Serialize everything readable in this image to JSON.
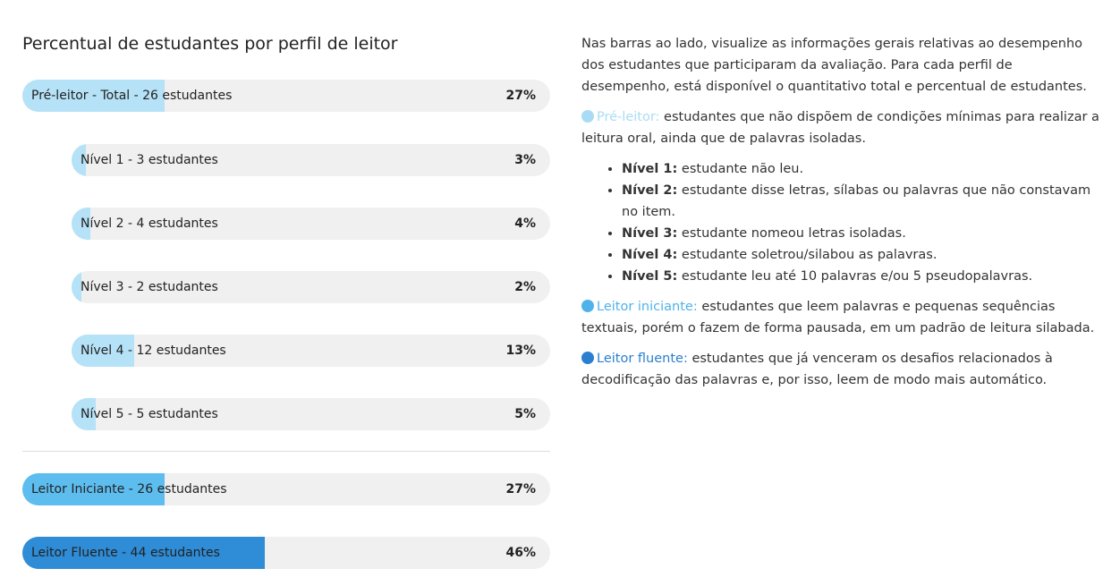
{
  "title": "Percentual de estudantes por perfil de leitor",
  "bars": [
    {
      "label": "Pré-leitor - Total - 26 estudantes",
      "value": 27,
      "value_label": "27%",
      "color": "#b5e2f7"
    },
    {
      "label": "Nível 1 - 3 estudantes",
      "value": 3,
      "value_label": "3%",
      "color": "#b5e2f7"
    },
    {
      "label": "Nível 2 - 4 estudantes",
      "value": 4,
      "value_label": "4%",
      "color": "#b5e2f7"
    },
    {
      "label": "Nível 3 - 2 estudantes",
      "value": 2,
      "value_label": "2%",
      "color": "#b5e2f7"
    },
    {
      "label": "Nível 4 - 12 estudantes",
      "value": 13,
      "value_label": "13%",
      "color": "#b5e2f7"
    },
    {
      "label": "Nível 5 - 5 estudantes",
      "value": 5,
      "value_label": "5%",
      "color": "#b5e2f7"
    },
    {
      "label": "Leitor Iniciante - 26 estudantes",
      "value": 27,
      "value_label": "27%",
      "color": "#5cbdee"
    },
    {
      "label": "Leitor Fluente - 44 estudantes",
      "value": 46,
      "value_label": "46%",
      "color": "#2f8cd6"
    }
  ],
  "description": {
    "intro": "Nas barras ao lado, visualize as informações gerais relativas ao desempenho dos estudantes que participaram da avaliação. Para cada perfil de desempenho, está disponível o quantitativo total e percentual de estudantes.",
    "profiles": [
      {
        "name": "Pré-leitor:",
        "text": "estudantes que não dispõem de condições mínimas para realizar a leitura oral, ainda que de palavras isoladas.",
        "color": "#a9dcf4"
      },
      {
        "name": "Leitor iniciante:",
        "text": "estudantes que leem palavras e pequenas sequências textuais, porém o fazem de forma pausada, em um padrão de leitura silabada.",
        "color": "#4fb3ea"
      },
      {
        "name": "Leitor fluente:",
        "text": "estudantes que já venceram os desafios relacionados à decodificação das palavras e, por isso, leem de modo mais automático.",
        "color": "#2a7fd0"
      }
    ],
    "levels": [
      {
        "name": "Nível 1:",
        "text": "estudante não leu."
      },
      {
        "name": "Nível 2:",
        "text": "estudante disse letras, sílabas ou palavras que não constavam no item."
      },
      {
        "name": "Nível 3:",
        "text": "estudante nomeou letras isoladas."
      },
      {
        "name": "Nível 4:",
        "text": "estudante soletrou/silabou as palavras."
      },
      {
        "name": "Nível 5:",
        "text": "estudante leu até 10 palavras e/ou 5 pseudopalavras."
      }
    ]
  }
}
